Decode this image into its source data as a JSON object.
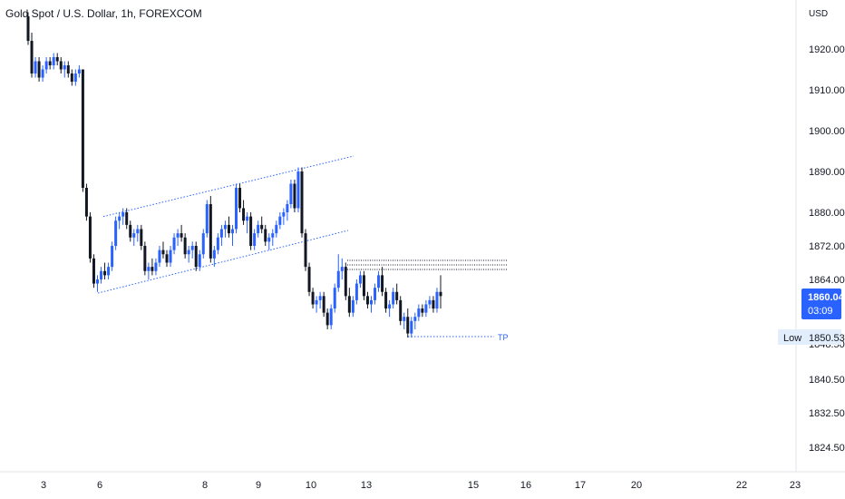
{
  "header": {
    "title": "Gold Spot / U.S. Dollar, 1h, FOREXCOM"
  },
  "price_scale": {
    "currency": "USD"
  },
  "colors": {
    "up": "#2962ff",
    "down": "#131722",
    "annotation": "#2962ff",
    "resistance": "#131722",
    "price_tag_bg": "#2962ff",
    "low_tag_bg": "#e3eefc"
  },
  "last_price": {
    "value": "1860.04",
    "countdown": "03:09"
  },
  "low_label": {
    "label": "Low",
    "value": "1850.53"
  },
  "chart_data": {
    "type": "candlestick",
    "title": "Gold Spot / U.S. Dollar, 1h, FOREXCOM",
    "y_ticks": [
      "1920.00",
      "1910.00",
      "1900.00",
      "1890.00",
      "1880.00",
      "1872.00",
      "1864.00",
      "1848.50",
      "1840.50",
      "1832.50",
      "1824.50"
    ],
    "x_ticks": [
      "3",
      "6",
      "8",
      "9",
      "10",
      "13",
      "15",
      "16",
      "17",
      "20",
      "22",
      "23"
    ],
    "current_price": 1860.04,
    "session_low": 1850.53,
    "annotations": [
      {
        "type": "channel_line",
        "name": "channel-upper",
        "from": [
          "5",
          1879
        ],
        "to": [
          "10",
          1894
        ]
      },
      {
        "type": "channel_line",
        "name": "channel-lower",
        "from": [
          "5",
          1859
        ],
        "to": [
          "10",
          1874
        ]
      },
      {
        "type": "horizontal_line",
        "name": "resistance-1",
        "y": 1868.5
      },
      {
        "type": "horizontal_line",
        "name": "resistance-2",
        "y": 1867.8
      },
      {
        "type": "horizontal_line",
        "name": "resistance-3",
        "y": 1866.9
      },
      {
        "type": "horizontal_line",
        "name": "tp-line",
        "y": 1850.3,
        "label": "TP"
      }
    ],
    "candles": [
      [
        1928,
        1929,
        1921,
        1922
      ],
      [
        1922,
        1924,
        1913,
        1914
      ],
      [
        1914,
        1918,
        1913,
        1917
      ],
      [
        1917,
        1918,
        1912,
        1913
      ],
      [
        1913,
        1916,
        1912,
        1915
      ],
      [
        1915,
        1918,
        1914,
        1917
      ],
      [
        1917,
        1918,
        1915,
        1916
      ],
      [
        1916,
        1919,
        1915,
        1918
      ],
      [
        1918,
        1919,
        1916,
        1917
      ],
      [
        1917,
        1918,
        1914,
        1915
      ],
      [
        1915,
        1917,
        1913,
        1916
      ],
      [
        1916,
        1917,
        1913,
        1914
      ],
      [
        1914,
        1915,
        1911,
        1912
      ],
      [
        1912,
        1915,
        1911,
        1914
      ],
      [
        1914,
        1916,
        1913,
        1915
      ],
      [
        1915,
        1915,
        1885,
        1886
      ],
      [
        1886,
        1887,
        1878,
        1879
      ],
      [
        1879,
        1880,
        1868,
        1869
      ],
      [
        1869,
        1870,
        1862,
        1863
      ],
      [
        1863,
        1865,
        1861,
        1864
      ],
      [
        1864,
        1867,
        1863,
        1866
      ],
      [
        1866,
        1868,
        1864,
        1865
      ],
      [
        1865,
        1868,
        1864,
        1867
      ],
      [
        1867,
        1873,
        1866,
        1872
      ],
      [
        1872,
        1879,
        1871,
        1878
      ],
      [
        1878,
        1880,
        1876,
        1879
      ],
      [
        1879,
        1881,
        1877,
        1880
      ],
      [
        1880,
        1881,
        1876,
        1877
      ],
      [
        1877,
        1878,
        1873,
        1874
      ],
      [
        1874,
        1876,
        1872,
        1875
      ],
      [
        1875,
        1877,
        1873,
        1876
      ],
      [
        1876,
        1877,
        1871,
        1872
      ],
      [
        1872,
        1873,
        1865,
        1866
      ],
      [
        1866,
        1868,
        1864,
        1867
      ],
      [
        1867,
        1869,
        1865,
        1866
      ],
      [
        1866,
        1869,
        1865,
        1868
      ],
      [
        1868,
        1872,
        1867,
        1871
      ],
      [
        1871,
        1873,
        1869,
        1870
      ],
      [
        1870,
        1871,
        1867,
        1868
      ],
      [
        1868,
        1872,
        1867,
        1871
      ],
      [
        1871,
        1875,
        1870,
        1874
      ],
      [
        1874,
        1876,
        1872,
        1875
      ],
      [
        1875,
        1877,
        1873,
        1874
      ],
      [
        1874,
        1875,
        1869,
        1870
      ],
      [
        1870,
        1872,
        1868,
        1871
      ],
      [
        1871,
        1873,
        1869,
        1872
      ],
      [
        1872,
        1873,
        1866,
        1867
      ],
      [
        1867,
        1871,
        1866,
        1870
      ],
      [
        1870,
        1876,
        1869,
        1875
      ],
      [
        1875,
        1883,
        1874,
        1882
      ],
      [
        1882,
        1884,
        1868,
        1869
      ],
      [
        1869,
        1872,
        1867,
        1871
      ],
      [
        1871,
        1875,
        1870,
        1874
      ],
      [
        1874,
        1877,
        1872,
        1876
      ],
      [
        1876,
        1878,
        1874,
        1877
      ],
      [
        1877,
        1879,
        1874,
        1875
      ],
      [
        1875,
        1877,
        1872,
        1876
      ],
      [
        1876,
        1887,
        1875,
        1886
      ],
      [
        1886,
        1887,
        1880,
        1881
      ],
      [
        1881,
        1883,
        1877,
        1878
      ],
      [
        1878,
        1880,
        1875,
        1879
      ],
      [
        1879,
        1880,
        1871,
        1872
      ],
      [
        1872,
        1876,
        1871,
        1875
      ],
      [
        1875,
        1878,
        1874,
        1877
      ],
      [
        1877,
        1879,
        1875,
        1876
      ],
      [
        1876,
        1877,
        1872,
        1873
      ],
      [
        1873,
        1875,
        1871,
        1874
      ],
      [
        1874,
        1876,
        1872,
        1875
      ],
      [
        1875,
        1878,
        1874,
        1877
      ],
      [
        1877,
        1880,
        1876,
        1879
      ],
      [
        1879,
        1881,
        1877,
        1880
      ],
      [
        1880,
        1883,
        1878,
        1882
      ],
      [
        1882,
        1888,
        1881,
        1887
      ],
      [
        1887,
        1888,
        1880,
        1881
      ],
      [
        1881,
        1891,
        1880,
        1890
      ],
      [
        1890,
        1891,
        1874,
        1875
      ],
      [
        1875,
        1876,
        1866,
        1867
      ],
      [
        1867,
        1868,
        1860,
        1861
      ],
      [
        1861,
        1862,
        1857,
        1858
      ],
      [
        1858,
        1860,
        1856,
        1859
      ],
      [
        1859,
        1861,
        1857,
        1860
      ],
      [
        1860,
        1861,
        1855,
        1856
      ],
      [
        1856,
        1857,
        1852,
        1853
      ],
      [
        1853,
        1858,
        1852,
        1857
      ],
      [
        1857,
        1863,
        1856,
        1862
      ],
      [
        1862,
        1870,
        1861,
        1866
      ],
      [
        1866,
        1869,
        1864,
        1867
      ],
      [
        1867,
        1868,
        1859,
        1860
      ],
      [
        1860,
        1862,
        1855,
        1856
      ],
      [
        1856,
        1860,
        1855,
        1859
      ],
      [
        1859,
        1864,
        1858,
        1863
      ],
      [
        1863,
        1866,
        1862,
        1865
      ],
      [
        1865,
        1866,
        1859,
        1860
      ],
      [
        1860,
        1861,
        1857,
        1858
      ],
      [
        1858,
        1860,
        1856,
        1859
      ],
      [
        1859,
        1863,
        1858,
        1862
      ],
      [
        1862,
        1866,
        1861,
        1865
      ],
      [
        1865,
        1867,
        1860,
        1861
      ],
      [
        1861,
        1862,
        1856,
        1857
      ],
      [
        1857,
        1859,
        1855,
        1858
      ],
      [
        1858,
        1862,
        1857,
        1861
      ],
      [
        1861,
        1863,
        1858,
        1859
      ],
      [
        1859,
        1860,
        1853,
        1854
      ],
      [
        1854,
        1856,
        1852,
        1855
      ],
      [
        1855,
        1857,
        1850,
        1851
      ],
      [
        1851,
        1855,
        1850,
        1854
      ],
      [
        1854,
        1856,
        1852,
        1855
      ],
      [
        1855,
        1858,
        1854,
        1857
      ],
      [
        1857,
        1858,
        1855,
        1856
      ],
      [
        1856,
        1859,
        1855,
        1858
      ],
      [
        1858,
        1860,
        1857,
        1859
      ],
      [
        1859,
        1860,
        1856,
        1857
      ],
      [
        1857,
        1862,
        1856,
        1861
      ],
      [
        1861,
        1865,
        1857,
        1860
      ]
    ]
  }
}
